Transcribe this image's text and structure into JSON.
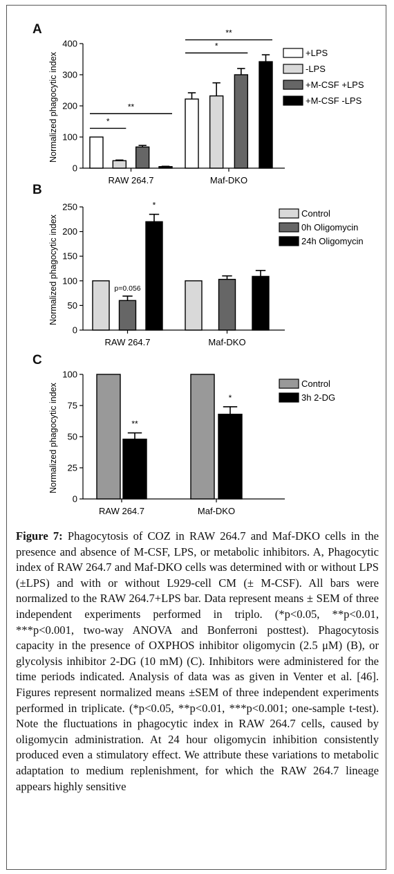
{
  "figure": {
    "panels": [
      {
        "label": "A"
      },
      {
        "label": "B"
      },
      {
        "label": "C"
      }
    ],
    "caption": {
      "label": "Figure 7:",
      "text": "Phagocytosis of COZ in RAW 264.7 and Maf-DKO cells in the presence and absence of M-CSF, LPS, or metabolic inhibitors. A, Phagocytic index of RAW 264.7 and Maf-DKO cells was determined with or without LPS (±LPS) and with or without L929-cell CM (± M-CSF). All bars were normalized to the RAW 264.7+LPS bar. Data represent means ± SEM of three independent experiments performed in triplo. (*p<0.05, **p<0.01, ***p<0.001, two-way ANOVA and Bonferroni posttest). Phagocytosis capacity in the presence of OXPHOS inhibitor oligomycin (2.5 μM) (B), or glycolysis inhibitor 2-DG (10 mM) (C). Inhibitors were administered for the time periods indicated. Analysis of data was as given in Venter et al. [46]. Figures represent normalized means ±SEM of three independent experiments performed in triplicate. (*p<0.05, **p<0.01, ***p<0.001; one-sample t-test). Note the fluctuations in phagocytic index in RAW 264.7 cells, caused by oligomycin administration. At 24 hour oligomycin inhibition consistently produced even a stimulatory effect. We attribute these variations to metabolic adaptation to medium replenishment, for which the RAW 264.7 lineage appears highly sensitive"
    }
  },
  "chart_data": [
    {
      "type": "bar",
      "panel": "A",
      "ylabel": "Normalized phagocytic index",
      "ylim": [
        0,
        400
      ],
      "yticks": [
        0,
        100,
        200,
        300,
        400
      ],
      "categories": [
        "RAW 264.7",
        "Maf-DKO"
      ],
      "legend_position": "top-right",
      "series": [
        {
          "name": "+LPS",
          "values": [
            100,
            222
          ],
          "errors": [
            0,
            20
          ],
          "color": "#ffffff"
        },
        {
          "name": "-LPS",
          "values": [
            24,
            232
          ],
          "errors": [
            2,
            42
          ],
          "color": "#d9d9d9"
        },
        {
          "name": "+M-CSF +LPS",
          "values": [
            68,
            300
          ],
          "errors": [
            5,
            20
          ],
          "color": "#666666"
        },
        {
          "name": "+M-CSF -LPS",
          "values": [
            5,
            342
          ],
          "errors": [
            1,
            22
          ],
          "color": "#000000"
        }
      ],
      "significance": [
        {
          "category": "RAW 264.7",
          "from": "+LPS",
          "to": "-LPS",
          "label": "*",
          "y": 128
        },
        {
          "category": "RAW 264.7",
          "from": "+LPS",
          "to": "+M-CSF -LPS",
          "label": "**",
          "y": 175
        },
        {
          "category": "Maf-DKO",
          "from": "+LPS",
          "to": "+M-CSF +LPS",
          "label": "*",
          "y": 370
        },
        {
          "category": "Maf-DKO",
          "from": "+LPS",
          "to": "+M-CSF -LPS",
          "label": "**",
          "y": 412
        }
      ]
    },
    {
      "type": "bar",
      "panel": "B",
      "ylabel": "Normalized phagocytic index",
      "ylim": [
        0,
        250
      ],
      "yticks": [
        0,
        50,
        100,
        150,
        200,
        250
      ],
      "categories": [
        "RAW 264.7",
        "Maf-DKO"
      ],
      "legend_position": "top-right",
      "series": [
        {
          "name": "Control",
          "values": [
            100,
            100
          ],
          "errors": [
            0,
            0
          ],
          "color": "#d9d9d9"
        },
        {
          "name": "0h Oligomycin",
          "values": [
            60,
            103
          ],
          "errors": [
            9,
            7
          ],
          "color": "#666666"
        },
        {
          "name": "24h Oligomycin",
          "values": [
            220,
            109
          ],
          "errors": [
            15,
            12
          ],
          "color": "#000000"
        }
      ],
      "annotations": [
        {
          "category": "RAW 264.7",
          "series": "0h Oligomycin",
          "text": "p=0.056"
        },
        {
          "category": "RAW 264.7",
          "series": "24h Oligomycin",
          "text": "*"
        }
      ]
    },
    {
      "type": "bar",
      "panel": "C",
      "ylabel": "Normalized phagocytic index",
      "ylim": [
        0,
        100
      ],
      "yticks": [
        0,
        25,
        50,
        75,
        100
      ],
      "categories": [
        "RAW 264.7",
        "Maf-DKO"
      ],
      "legend_position": "top-right",
      "series": [
        {
          "name": "Control",
          "values": [
            100,
            100
          ],
          "errors": [
            0,
            0
          ],
          "color": "#999999"
        },
        {
          "name": "3h 2-DG",
          "values": [
            48,
            68
          ],
          "errors": [
            5,
            6
          ],
          "color": "#000000"
        }
      ],
      "annotations": [
        {
          "category": "RAW 264.7",
          "series": "3h 2-DG",
          "text": "**"
        },
        {
          "category": "Maf-DKO",
          "series": "3h 2-DG",
          "text": "*"
        }
      ]
    }
  ]
}
